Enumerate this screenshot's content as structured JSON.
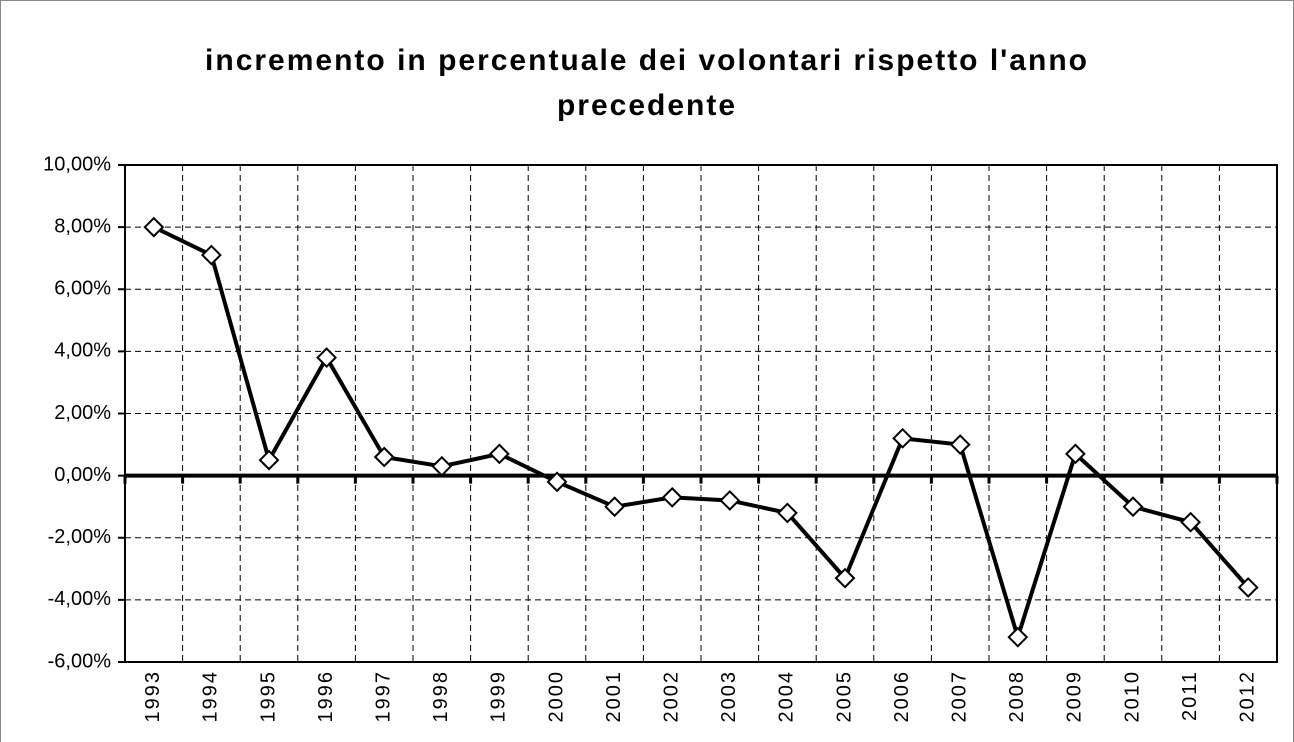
{
  "chart_data": {
    "type": "line",
    "title": "incremento in percentuale dei volontari rispetto l'anno precedente",
    "categories": [
      "1993",
      "1994",
      "1995",
      "1996",
      "1997",
      "1998",
      "1999",
      "2000",
      "2001",
      "2002",
      "2003",
      "2004",
      "2005",
      "2006",
      "2007",
      "2008",
      "2009",
      "2010",
      "2011",
      "2012"
    ],
    "values": [
      8.0,
      7.1,
      0.5,
      3.8,
      0.6,
      0.3,
      0.7,
      -0.2,
      -1.0,
      -0.7,
      -0.8,
      -1.2,
      -3.3,
      1.2,
      1.0,
      -5.2,
      0.7,
      -1.0,
      -1.5,
      -3.6
    ],
    "color": "#000000",
    "ylim": [
      -6,
      10
    ],
    "yticks": [
      {
        "value": -6,
        "label": "-6,00%"
      },
      {
        "value": -4,
        "label": "-4,00%"
      },
      {
        "value": -2,
        "label": "-2,00%"
      },
      {
        "value": 0,
        "label": "0,00%"
      },
      {
        "value": 2,
        "label": "2,00%"
      },
      {
        "value": 4,
        "label": "4,00%"
      },
      {
        "value": 6,
        "label": "6,00%"
      },
      {
        "value": 8,
        "label": "8,00%"
      },
      {
        "value": 10,
        "label": "10,00%"
      }
    ],
    "grid": true
  }
}
